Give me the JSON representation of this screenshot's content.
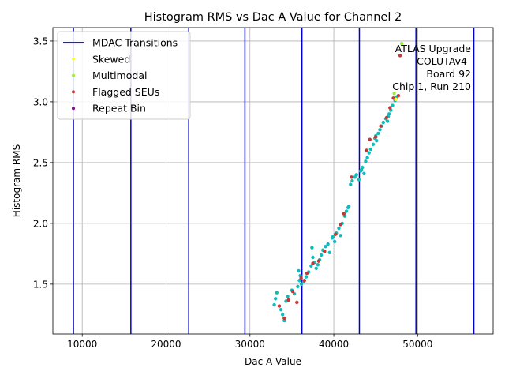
{
  "chart_data": {
    "type": "scatter",
    "title": "Histogram RMS vs Dac A Value for Channel 2",
    "xlabel": "Dac A Value",
    "ylabel": "Histogram RMS",
    "xlim": [
      6500,
      59000
    ],
    "ylim": [
      1.09,
      3.61
    ],
    "xticks": [
      10000,
      20000,
      30000,
      40000,
      50000
    ],
    "yticks": [
      1.5,
      2.0,
      2.5,
      3.0,
      3.5
    ],
    "xtick_labels": [
      "10000",
      "20000",
      "30000",
      "40000",
      "50000"
    ],
    "ytick_labels": [
      "1.5",
      "2.0",
      "2.5",
      "3.0",
      "3.5"
    ],
    "grid": true,
    "legend_position": "top-left",
    "legend": [
      {
        "label": "MDAC Transitions",
        "kind": "line",
        "color": "#0000cc"
      },
      {
        "label": "Skewed",
        "kind": "point",
        "color": "#ffff33"
      },
      {
        "label": "Multimodal",
        "kind": "point",
        "color": "#99ee33"
      },
      {
        "label": "Flagged SEUs",
        "kind": "point",
        "color": "#cc3333"
      },
      {
        "label": "Repeat Bin",
        "kind": "point",
        "color": "#771188"
      }
    ],
    "mdac_transitions": [
      8950,
      15800,
      22700,
      29400,
      36200,
      43050,
      49800,
      56700
    ],
    "annotation": [
      "ATLAS Upgrade",
      "COLUTAv4",
      "Board 92",
      "Chip 1, Run 210"
    ],
    "series": [
      {
        "name": "Data",
        "color": "#11bbbb",
        "x": [
          32900,
          33050,
          33200,
          33700,
          33900,
          34300,
          34500,
          35000,
          35300,
          35700,
          35900,
          36000,
          36150,
          36400,
          36700,
          37000,
          37300,
          37500,
          37700,
          37900,
          38100,
          38300,
          38500,
          38700,
          39000,
          39300,
          39500,
          39800,
          40100,
          40300,
          40600,
          40800,
          41000,
          41300,
          41500,
          41800,
          42000,
          42200,
          42500,
          42700,
          43000,
          43200,
          43400,
          43600,
          43800,
          44000,
          44200,
          44400,
          44700,
          44900,
          45100,
          45300,
          45500,
          45700,
          45900,
          46200,
          46400,
          46600,
          46800,
          47000,
          47300,
          47500,
          35800,
          37400,
          39900,
          41700,
          43300,
          45000,
          46500,
          34100
        ],
        "y": [
          1.33,
          1.38,
          1.43,
          1.29,
          1.25,
          1.36,
          1.4,
          1.45,
          1.42,
          1.48,
          1.53,
          1.57,
          1.5,
          1.52,
          1.56,
          1.6,
          1.65,
          1.72,
          1.68,
          1.63,
          1.66,
          1.7,
          1.74,
          1.78,
          1.81,
          1.83,
          1.76,
          1.88,
          1.85,
          1.92,
          1.96,
          1.9,
          2.0,
          2.06,
          2.1,
          2.14,
          2.32,
          2.35,
          2.38,
          2.4,
          2.36,
          2.43,
          2.46,
          2.41,
          2.51,
          2.54,
          2.58,
          2.61,
          2.65,
          2.7,
          2.68,
          2.74,
          2.77,
          2.8,
          2.83,
          2.86,
          2.84,
          2.9,
          2.93,
          2.97,
          3.01,
          3.04,
          1.61,
          1.8,
          1.89,
          2.13,
          2.44,
          2.72,
          2.88,
          1.2
        ]
      },
      {
        "name": "Flagged SEUs",
        "color": "#cc3333",
        "x": [
          33500,
          34100,
          34600,
          35600,
          36100,
          36500,
          36800,
          37500,
          38200,
          38900,
          40200,
          41200,
          42100,
          43900,
          44300,
          45600,
          46300,
          46700,
          47100,
          47700,
          47900,
          35100,
          40800,
          45000
        ],
        "y": [
          1.32,
          1.22,
          1.37,
          1.35,
          1.55,
          1.53,
          1.59,
          1.67,
          1.69,
          1.77,
          1.91,
          2.08,
          2.38,
          2.6,
          2.69,
          2.8,
          2.87,
          2.95,
          3.03,
          3.05,
          3.38,
          1.44,
          1.99,
          2.71
        ]
      },
      {
        "name": "Multimodal",
        "color": "#99ee33",
        "x": [
          48100,
          47200
        ],
        "y": [
          3.48,
          3.07
        ]
      },
      {
        "name": "Skewed",
        "color": "#ffff33",
        "x": [
          47400
        ],
        "y": [
          3.02
        ]
      }
    ]
  }
}
